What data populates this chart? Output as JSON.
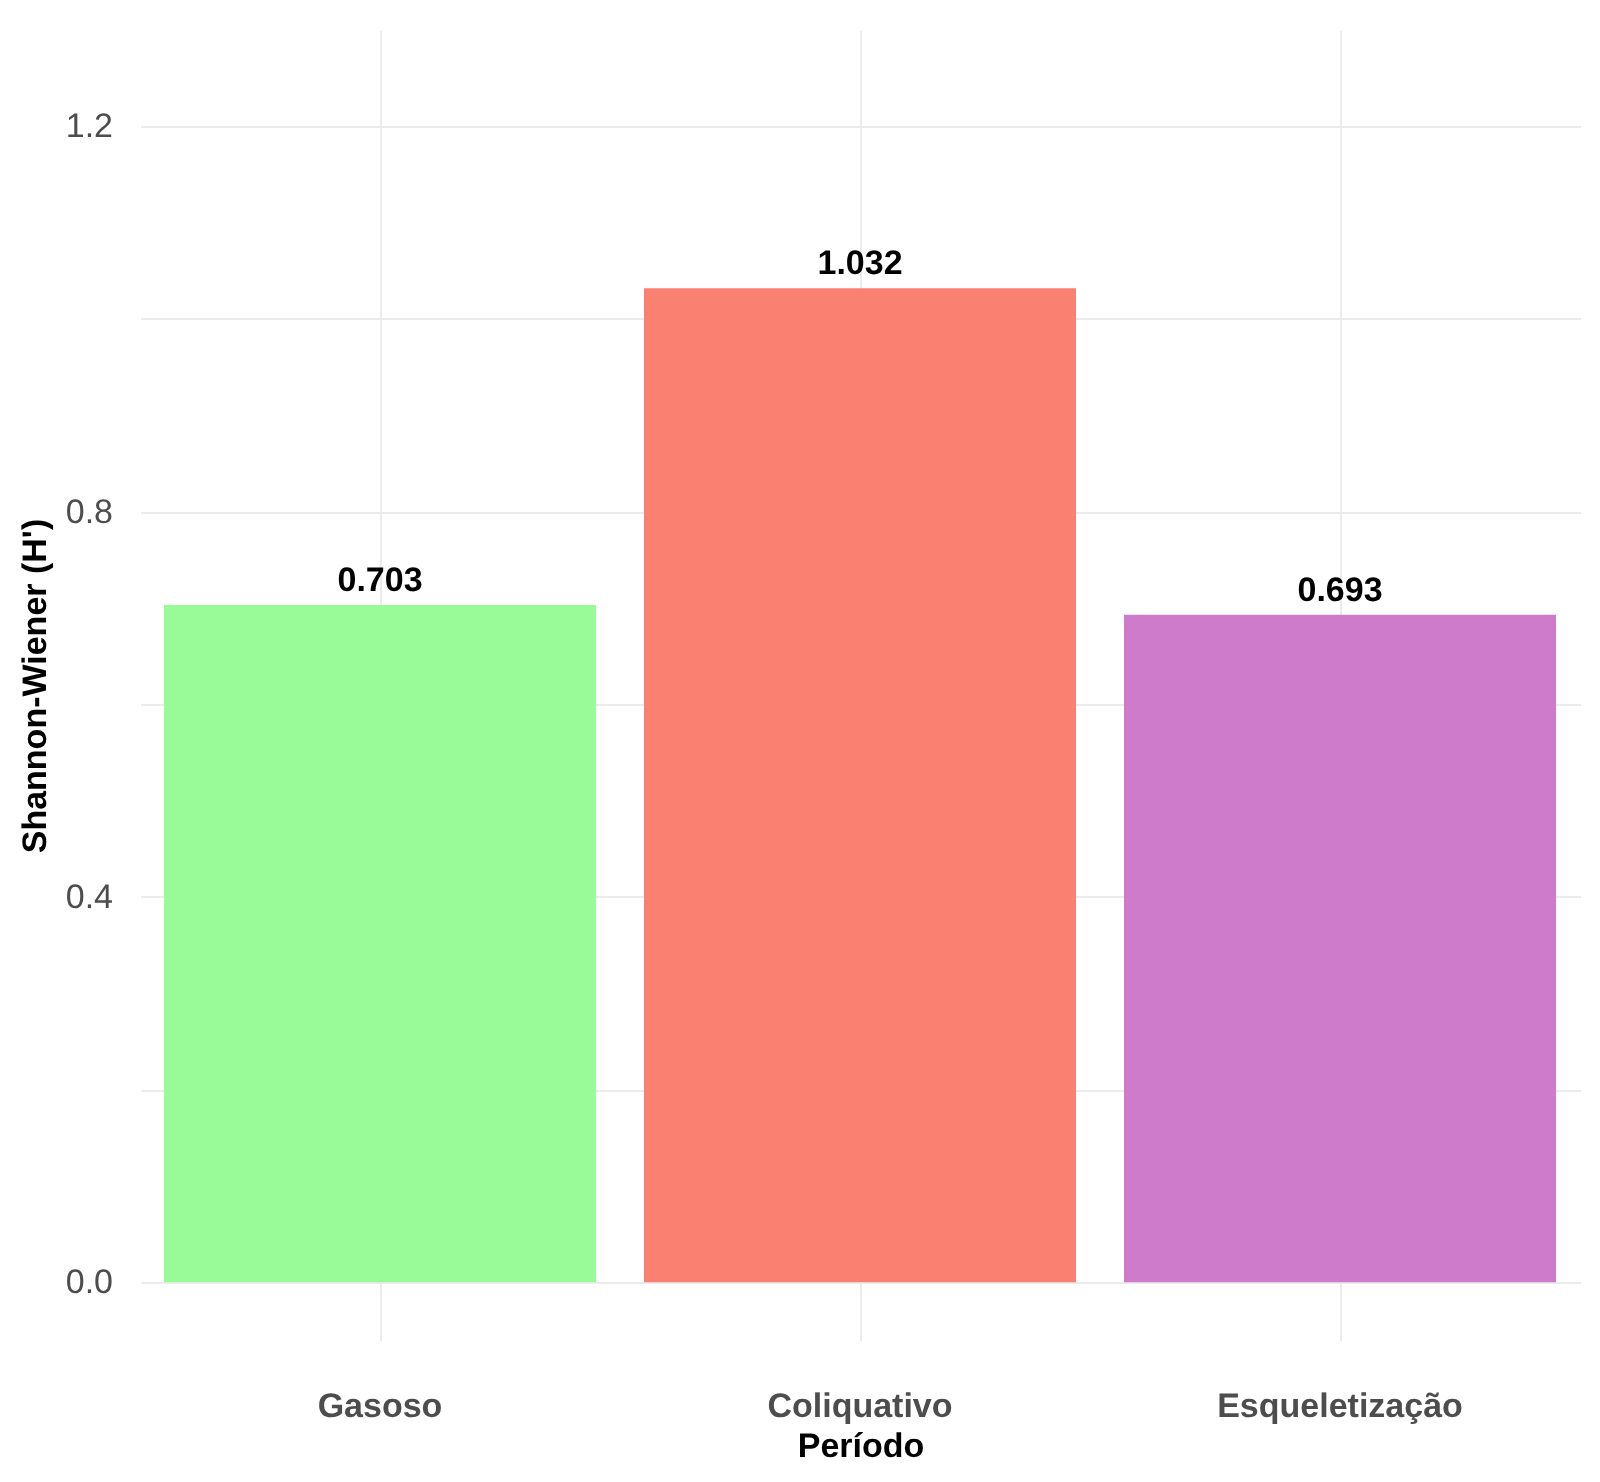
{
  "chart_data": {
    "type": "bar",
    "xlabel": "Período",
    "ylabel": "Shannon-Wiener (H')",
    "categories": [
      "Gasoso",
      "Coliquativo",
      "Esqueletização"
    ],
    "values": [
      0.703,
      1.032,
      0.693
    ],
    "colors": [
      "#98fb98",
      "#fa8072",
      "#ce7bcc"
    ],
    "ylim": [
      -0.06,
      1.3
    ],
    "yticks": [
      {
        "value": 0,
        "label": "0.0"
      },
      {
        "value": 0.2,
        "label": null
      },
      {
        "value": 0.4,
        "label": "0.4"
      },
      {
        "value": 0.6,
        "label": null
      },
      {
        "value": 0.8,
        "label": "0.8"
      },
      {
        "value": 1.0,
        "label": null
      },
      {
        "value": 1.2,
        "label": "1.2"
      }
    ],
    "grid": true,
    "data_labels": true
  }
}
